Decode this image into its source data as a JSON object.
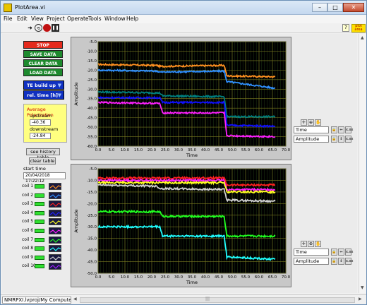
{
  "window": {
    "title": "PlotArea.vi",
    "buttons": {
      "minimize": "–",
      "maximize": "□",
      "close": "✕"
    }
  },
  "menu": [
    "File",
    "Edit",
    "View",
    "Project",
    "Operate",
    "Tools",
    "Window",
    "Help"
  ],
  "toolbar": {
    "run_icon": "run-arrow-icon",
    "run_continuous_icon": "run-continuous-icon",
    "abort_icon": "abort-icon",
    "pause_icon": "pause-icon",
    "help_icon": "?",
    "vi_icon_text": "plot area"
  },
  "controls": {
    "stop": "STOP",
    "save": "SAVE DATA",
    "clear": "CLEAR DATA",
    "load": "LOAD DATA",
    "mode_select": "TE build up",
    "time_select": "rel. time [h]",
    "avg_title": "Average Polarization",
    "upstream_label": "upstream",
    "upstream_value": "-40.36",
    "downstream_label": "downstream",
    "downstream_value": "-24.84",
    "history_btn": "see history table",
    "clear_table_btn": "clear table",
    "start_label": "start time",
    "start_value": "20/04/2018 17:22:12"
  },
  "coils": [
    "coil 1",
    "coil 2",
    "coil 3",
    "coil 4",
    "coil 5",
    "coil 6",
    "coil 7",
    "coil 8",
    "coil 9",
    "coil 10"
  ],
  "coil_colors": [
    "#ff9020",
    "#3090ff",
    "#ff2020",
    "#2020ff",
    "#ffff20",
    "#ff20ff",
    "#20ff20",
    "#20ffff",
    "#d0d0d0",
    "#a020ff"
  ],
  "graphs": [
    {
      "xlabel": "Time",
      "ylabel": "Amplitude",
      "legend": [
        "Time",
        "Amplitude"
      ]
    },
    {
      "xlabel": "Time",
      "ylabel": "Amplitude",
      "legend": [
        "Time",
        "Amplitude"
      ]
    }
  ],
  "status": {
    "path": "NMRPXI.lvproj/My Computer"
  },
  "chart_data": [
    {
      "type": "line",
      "xlabel": "Time",
      "ylabel": "Amplitude",
      "xlim": [
        0,
        70
      ],
      "ylim": [
        -60,
        -5
      ],
      "xticks": [
        0,
        5,
        10,
        15,
        20,
        25,
        30,
        35,
        40,
        45,
        50,
        55,
        60,
        65,
        70
      ],
      "yticks": [
        -5,
        -10,
        -15,
        -20,
        -25,
        -30,
        -35,
        -40,
        -45,
        -50,
        -55,
        -60
      ],
      "series": [
        {
          "color": "#ff9020",
          "x": [
            0,
            22,
            23,
            47,
            48,
            66
          ],
          "y": [
            -17,
            -17.5,
            -18,
            -17.5,
            -23,
            -23.5
          ]
        },
        {
          "color": "#3090ff",
          "x": [
            0,
            22,
            23,
            47,
            48,
            66
          ],
          "y": [
            -20,
            -20.5,
            -21,
            -20.5,
            -26,
            -29.5
          ]
        },
        {
          "color": "#008080",
          "x": [
            0,
            23,
            24,
            47,
            48,
            66
          ],
          "y": [
            -31.5,
            -32,
            -33.5,
            -34,
            -44.5,
            -44.5
          ]
        },
        {
          "color": "#1010ff",
          "x": [
            0,
            23,
            24,
            47,
            48,
            66
          ],
          "y": [
            -34.5,
            -34.5,
            -37,
            -37,
            -49,
            -49.5
          ]
        },
        {
          "color": "#ff20ff",
          "x": [
            0,
            23,
            24,
            47,
            48,
            66
          ],
          "y": [
            -37,
            -37.5,
            -42.5,
            -42.5,
            -54.5,
            -55
          ]
        }
      ]
    },
    {
      "type": "line",
      "xlabel": "Time",
      "ylabel": "Amplitude",
      "xlim": [
        0,
        70
      ],
      "ylim": [
        -50,
        -5
      ],
      "xticks": [
        0,
        5,
        10,
        15,
        20,
        25,
        30,
        35,
        40,
        45,
        50,
        55,
        60,
        65,
        70
      ],
      "yticks": [
        -5,
        -10,
        -15,
        -20,
        -25,
        -30,
        -35,
        -40,
        -45,
        -50
      ],
      "series": [
        {
          "color": "#ff2020",
          "x": [
            0,
            47,
            48,
            66
          ],
          "y": [
            -9,
            -9,
            -12,
            -12
          ]
        },
        {
          "color": "#ff20ff",
          "x": [
            0,
            47,
            48,
            66
          ],
          "y": [
            -10,
            -10,
            -14,
            -14
          ]
        },
        {
          "color": "#ffff20",
          "x": [
            0,
            47,
            48,
            66
          ],
          "y": [
            -11,
            -11,
            -15,
            -15
          ]
        },
        {
          "color": "#d0d0d0",
          "x": [
            0,
            22,
            23,
            47,
            48,
            66
          ],
          "y": [
            -12,
            -12.5,
            -13.5,
            -14,
            -18.5,
            -19
          ]
        },
        {
          "color": "#20ff20",
          "x": [
            0,
            23,
            24,
            47,
            48,
            66
          ],
          "y": [
            -23.5,
            -23.5,
            -25.5,
            -25.5,
            -34,
            -34
          ]
        },
        {
          "color": "#20ffff",
          "x": [
            0,
            23,
            24,
            47,
            48,
            66
          ],
          "y": [
            -30,
            -30,
            -34,
            -34,
            -43,
            -44
          ]
        }
      ]
    }
  ]
}
